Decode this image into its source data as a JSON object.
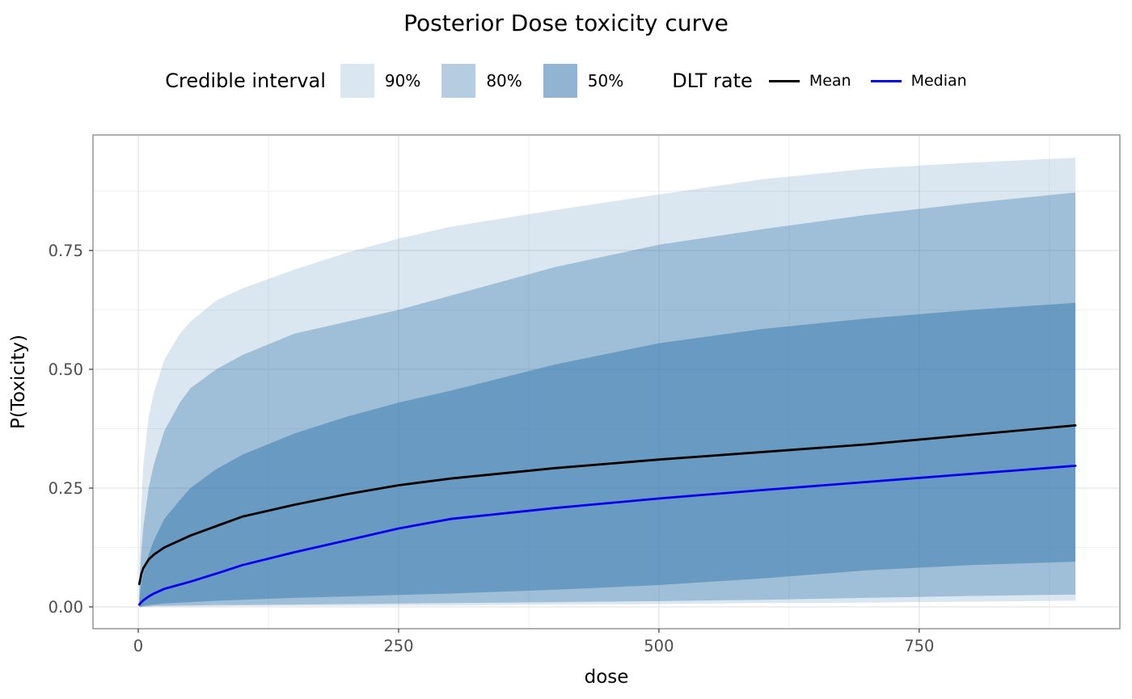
{
  "chart_data": {
    "type": "area",
    "title": "Posterior Dose toxicity curve",
    "xlabel": "dose",
    "ylabel": "P(Toxicity)",
    "xlim": [
      0,
      900
    ],
    "ylim": [
      0,
      1
    ],
    "x_ticks": [
      "0",
      "250",
      "500",
      "750"
    ],
    "x_tick_values": [
      0,
      250,
      500,
      750
    ],
    "x_minor_values": [
      125,
      375,
      625,
      875
    ],
    "y_ticks": [
      "0.00",
      "0.25",
      "0.50",
      "0.75"
    ],
    "y_tick_values": [
      0,
      0.25,
      0.5,
      0.75
    ],
    "y_minor_values": [
      0.125,
      0.375,
      0.625,
      0.875
    ],
    "grid": true,
    "legend_position": "top",
    "legend": {
      "ci_title": "Credible interval",
      "bands": [
        {
          "label": "90%",
          "alpha": 0.2
        },
        {
          "label": "80%",
          "alpha": 0.4
        },
        {
          "label": "50%",
          "alpha": 0.6
        }
      ],
      "dlt_title": "DLT rate",
      "lines": [
        {
          "label": "Mean",
          "color": "#000000"
        },
        {
          "label": "Median",
          "color": "#0000ee"
        }
      ]
    },
    "colors": {
      "band_base": "#4682b4",
      "mean": "#000000",
      "median": "#0000ee",
      "grid_major": "#e3e3e3",
      "grid_minor": "#f0f0f0",
      "panel_border": "#8f8f8f",
      "tick_mark": "#333333",
      "tick_label": "#4d4d4d"
    },
    "x": [
      1,
      3,
      5,
      10,
      15,
      25,
      40,
      50,
      75,
      100,
      150,
      200,
      250,
      300,
      400,
      500,
      600,
      700,
      800,
      900
    ],
    "bands": {
      "ci90": {
        "upper": [
          0.1,
          0.22,
          0.3,
          0.4,
          0.45,
          0.52,
          0.575,
          0.6,
          0.645,
          0.67,
          0.71,
          0.745,
          0.775,
          0.8,
          0.835,
          0.868,
          0.9,
          0.922,
          0.935,
          0.945
        ],
        "lower": [
          0.0,
          0.0,
          0.0,
          0.0,
          0.001,
          0.001,
          0.001,
          0.001,
          0.001,
          0.002,
          0.002,
          0.002,
          0.003,
          0.003,
          0.005,
          0.006,
          0.008,
          0.009,
          0.011,
          0.013
        ]
      },
      "ci80": {
        "upper": [
          0.05,
          0.12,
          0.17,
          0.25,
          0.3,
          0.37,
          0.43,
          0.46,
          0.5,
          0.53,
          0.575,
          0.6,
          0.625,
          0.655,
          0.715,
          0.762,
          0.795,
          0.825,
          0.85,
          0.872
        ],
        "lower": [
          0.0,
          0.0,
          0.001,
          0.001,
          0.002,
          0.002,
          0.003,
          0.003,
          0.004,
          0.004,
          0.005,
          0.006,
          0.007,
          0.008,
          0.01,
          0.012,
          0.015,
          0.019,
          0.023,
          0.026
        ]
      },
      "ci50": {
        "upper": [
          0.02,
          0.05,
          0.07,
          0.11,
          0.14,
          0.185,
          0.225,
          0.25,
          0.29,
          0.32,
          0.365,
          0.4,
          0.43,
          0.455,
          0.51,
          0.555,
          0.585,
          0.607,
          0.625,
          0.64
        ],
        "lower": [
          0.0,
          0.001,
          0.002,
          0.004,
          0.005,
          0.007,
          0.009,
          0.01,
          0.013,
          0.015,
          0.019,
          0.022,
          0.025,
          0.028,
          0.036,
          0.046,
          0.06,
          0.077,
          0.088,
          0.095
        ]
      }
    },
    "series": [
      {
        "name": "Mean",
        "values": [
          0.048,
          0.07,
          0.082,
          0.1,
          0.11,
          0.125,
          0.14,
          0.15,
          0.17,
          0.19,
          0.215,
          0.237,
          0.256,
          0.27,
          0.292,
          0.31,
          0.326,
          0.342,
          0.362,
          0.382
        ]
      },
      {
        "name": "Median",
        "values": [
          0.005,
          0.01,
          0.014,
          0.022,
          0.028,
          0.038,
          0.047,
          0.053,
          0.07,
          0.088,
          0.115,
          0.14,
          0.165,
          0.185,
          0.208,
          0.228,
          0.246,
          0.263,
          0.28,
          0.297
        ]
      }
    ]
  }
}
